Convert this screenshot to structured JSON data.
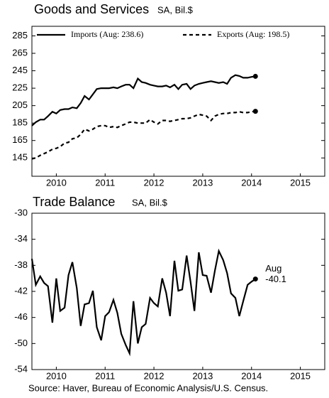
{
  "chart_data": [
    {
      "type": "line",
      "title": "Goods and Services",
      "subtitle": "SA, Bil.$",
      "x": [
        2010.0,
        2010.08,
        2010.17,
        2010.25,
        2010.33,
        2010.42,
        2010.5,
        2010.58,
        2010.67,
        2010.75,
        2010.83,
        2010.92,
        2011.0,
        2011.08,
        2011.17,
        2011.25,
        2011.33,
        2011.42,
        2011.5,
        2011.58,
        2011.67,
        2011.75,
        2011.83,
        2011.92,
        2012.0,
        2012.08,
        2012.17,
        2012.25,
        2012.33,
        2012.42,
        2012.5,
        2012.58,
        2012.67,
        2012.75,
        2012.83,
        2012.92,
        2013.0,
        2013.08,
        2013.17,
        2013.25,
        2013.33,
        2013.42,
        2013.5,
        2013.58,
        2013.67,
        2013.75,
        2013.83,
        2013.92,
        2014.0,
        2014.08,
        2014.17,
        2014.25,
        2014.33,
        2014.42,
        2014.5,
        2014.58
      ],
      "series": [
        {
          "name": "Imports (Aug: 238.6)",
          "color": "#000000",
          "dash": false,
          "values": [
            182,
            186,
            189,
            189,
            193,
            198,
            196,
            200,
            201,
            201,
            203,
            202,
            208,
            216,
            212,
            218,
            224,
            225,
            225,
            225,
            226,
            225,
            227,
            229,
            229,
            225,
            236,
            232,
            231,
            229,
            228,
            227,
            227,
            228,
            226,
            229,
            224,
            229,
            230,
            224,
            228,
            230,
            231,
            232,
            233,
            232,
            231,
            232,
            230,
            237,
            240,
            239,
            237,
            237,
            238,
            238.6
          ]
        },
        {
          "name": "Exports (Aug: 198.5)",
          "color": "#000000",
          "dash": true,
          "values": [
            144,
            145,
            148,
            150,
            152,
            155,
            156,
            158,
            162,
            163,
            167,
            168,
            172,
            178,
            176,
            178,
            181,
            182,
            182,
            180,
            181,
            180,
            182,
            184,
            186,
            186,
            185,
            185,
            185,
            189,
            186,
            184,
            188,
            188,
            187,
            188,
            189,
            190,
            190,
            191,
            193,
            195,
            194,
            193,
            188,
            193,
            195,
            196,
            196,
            197,
            197,
            198,
            197,
            197,
            198,
            198.5
          ]
        }
      ],
      "xlim": [
        2010,
        2016
      ],
      "xticks": [
        {
          "value": 2010.5,
          "label": "2010"
        },
        {
          "value": 2011.5,
          "label": "2011"
        },
        {
          "value": 2012.5,
          "label": "2012"
        },
        {
          "value": 2013.5,
          "label": "2013"
        },
        {
          "value": 2014.5,
          "label": "2014"
        },
        {
          "value": 2015.5,
          "label": "2015"
        }
      ],
      "ylim": [
        124,
        296
      ],
      "yticks": [
        145,
        165,
        185,
        205,
        225,
        245,
        265,
        285
      ]
    },
    {
      "type": "line",
      "title": "Trade Balance",
      "subtitle": "SA, Bil.$",
      "annotation": [
        "Aug",
        "-40.1"
      ],
      "x": [
        2010.0,
        2010.08,
        2010.17,
        2010.25,
        2010.33,
        2010.42,
        2010.5,
        2010.58,
        2010.67,
        2010.75,
        2010.83,
        2010.92,
        2011.0,
        2011.08,
        2011.17,
        2011.25,
        2011.33,
        2011.42,
        2011.5,
        2011.58,
        2011.67,
        2011.75,
        2011.83,
        2011.92,
        2012.0,
        2012.08,
        2012.17,
        2012.25,
        2012.33,
        2012.42,
        2012.5,
        2012.58,
        2012.67,
        2012.75,
        2012.83,
        2012.92,
        2013.0,
        2013.08,
        2013.17,
        2013.25,
        2013.33,
        2013.42,
        2013.5,
        2013.58,
        2013.67,
        2013.75,
        2013.83,
        2013.92,
        2014.0,
        2014.08,
        2014.17,
        2014.25,
        2014.33,
        2014.42,
        2014.5,
        2014.58
      ],
      "series": [
        {
          "color": "#000000",
          "dash": false,
          "values": [
            -37,
            -41,
            -39.7,
            -40.7,
            -41.2,
            -46.8,
            -40,
            -45,
            -44.5,
            -39.5,
            -37.5,
            -41.5,
            -47.3,
            -44,
            -43.8,
            -41.9,
            -47.5,
            -49.5,
            -45.8,
            -45.2,
            -43.3,
            -45.3,
            -48.5,
            -50.2,
            -51.5,
            -43.5,
            -50,
            -47.5,
            -47,
            -43,
            -43.8,
            -44.3,
            -40,
            -42.2,
            -45.8,
            -37.3,
            -41.9,
            -41.7,
            -36.5,
            -40.5,
            -45,
            -36,
            -39.5,
            -39.6,
            -42.2,
            -38.8,
            -35.8,
            -37.2,
            -39.2,
            -42.3,
            -43,
            -45.8,
            -43.5,
            -41,
            -40.5,
            -40.1
          ]
        }
      ],
      "xlim": [
        2010,
        2016
      ],
      "xticks": [
        {
          "value": 2010.5,
          "label": "2010"
        },
        {
          "value": 2011.5,
          "label": "2011"
        },
        {
          "value": 2012.5,
          "label": "2012"
        },
        {
          "value": 2013.5,
          "label": "2013"
        },
        {
          "value": 2014.5,
          "label": "2014"
        },
        {
          "value": 2015.5,
          "label": "2015"
        }
      ],
      "ylim": [
        -54,
        -30
      ],
      "yticks": [
        -30,
        -34,
        -38,
        -42,
        -46,
        -50,
        -54
      ]
    }
  ],
  "source": "Source:  Haver, Bureau of Economic Analysis/U.S. Census."
}
